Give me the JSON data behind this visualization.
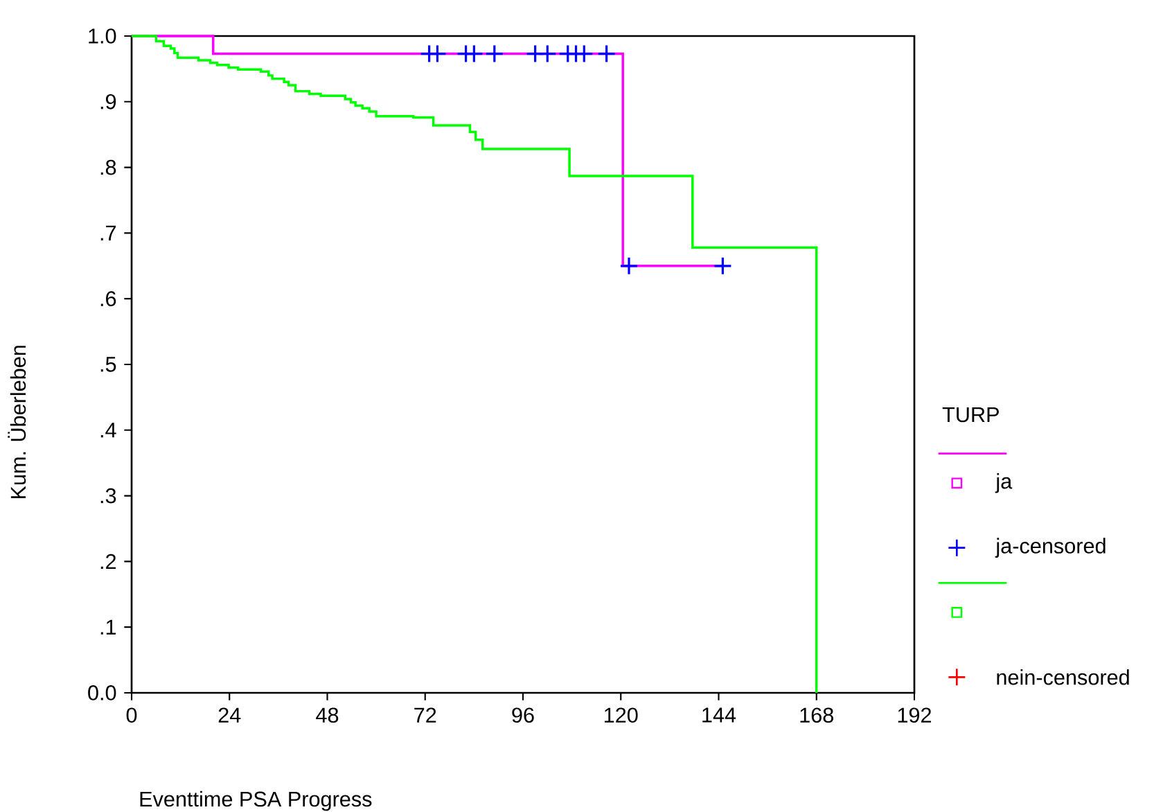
{
  "chart_data": {
    "type": "step",
    "xlabel": "Eventtime PSA Progress",
    "ylabel": "Kum. Überleben",
    "legend_title": "TURP",
    "legend": "right",
    "grid": false,
    "xlim": [
      0,
      192
    ],
    "xticks": [
      0,
      24,
      48,
      72,
      96,
      120,
      144,
      168,
      192
    ],
    "ylim": [
      0,
      1
    ],
    "yticks": [
      {
        "value": 0,
        "label": "0.0"
      },
      {
        "value": 0.1,
        "label": ".1"
      },
      {
        "value": 0.2,
        "label": ".2"
      },
      {
        "value": 0.3,
        "label": ".3"
      },
      {
        "value": 0.4,
        "label": ".4"
      },
      {
        "value": 0.5,
        "label": ".5"
      },
      {
        "value": 0.6,
        "label": ".6"
      },
      {
        "value": 0.7,
        "label": ".7"
      },
      {
        "value": 0.8,
        "label": ".8"
      },
      {
        "value": 0.9,
        "label": ".9"
      },
      {
        "value": 1,
        "label": "1.0"
      }
    ],
    "series": [
      {
        "name": "ja",
        "color": "#ff00ff",
        "x": [
          0,
          20,
          120.5,
          145
        ],
        "values": [
          1,
          0.973,
          0.65,
          0.65
        ]
      },
      {
        "name": "ja-censored",
        "type": "scatter",
        "marker": "cross",
        "color": "#0000ff",
        "x": [
          73,
          75,
          82,
          84,
          89,
          99,
          102,
          107,
          109,
          111,
          116.5,
          122,
          145
        ],
        "values": [
          0.973,
          0.973,
          0.973,
          0.973,
          0.973,
          0.973,
          0.973,
          0.973,
          0.973,
          0.973,
          0.973,
          0.65,
          0.65
        ]
      },
      {
        "color": "#00ff00",
        "x": [
          0,
          6,
          7.9,
          9.6,
          10.5,
          11.3,
          16.4,
          19.3,
          21,
          23.8,
          26.1,
          31.7,
          33.6,
          34.5,
          37.4,
          38.5,
          40.2,
          43.6,
          46.4,
          52.4,
          53.8,
          54.9,
          56.6,
          58.3,
          60,
          69.1,
          74,
          83,
          84.4,
          86.1,
          107.4,
          137.6,
          168
        ],
        "values": [
          1,
          0.992,
          0.985,
          0.981,
          0.974,
          0.967,
          0.963,
          0.959,
          0.956,
          0.952,
          0.949,
          0.946,
          0.94,
          0.935,
          0.93,
          0.925,
          0.916,
          0.912,
          0.909,
          0.904,
          0.899,
          0.894,
          0.89,
          0.885,
          0.878,
          0.876,
          0.864,
          0.854,
          0.842,
          0.828,
          0.787,
          0.678,
          0
        ]
      },
      {
        "name": "nein-censored",
        "type": "scatter",
        "marker": "cross",
        "color": "#ff0000"
      }
    ]
  }
}
